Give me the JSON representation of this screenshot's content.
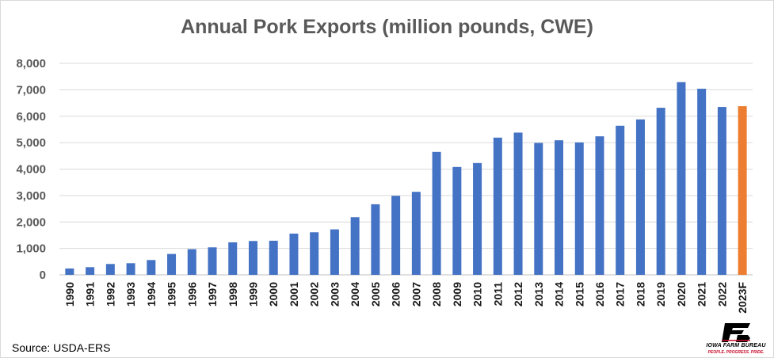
{
  "chart_data": {
    "type": "bar",
    "title": "Annual Pork Exports (million pounds, CWE)",
    "xlabel": "",
    "ylabel": "",
    "ylim": [
      0,
      8000
    ],
    "yticks": [
      "0",
      "1,000",
      "2,000",
      "3,000",
      "4,000",
      "5,000",
      "6,000",
      "7,000",
      "8,000"
    ],
    "categories": [
      "1990",
      "1991",
      "1992",
      "1993",
      "1994",
      "1995",
      "1996",
      "1997",
      "1998",
      "1999",
      "2000",
      "2001",
      "2002",
      "2003",
      "2004",
      "2005",
      "2006",
      "2007",
      "2008",
      "2009",
      "2010",
      "2011",
      "2012",
      "2013",
      "2014",
      "2015",
      "2016",
      "2017",
      "2018",
      "2019",
      "2020",
      "2021",
      "2022",
      "2023F"
    ],
    "values": [
      240,
      290,
      410,
      440,
      560,
      790,
      970,
      1040,
      1230,
      1280,
      1290,
      1560,
      1610,
      1720,
      2180,
      2670,
      2990,
      3140,
      4650,
      4080,
      4230,
      5190,
      5380,
      4990,
      5090,
      5010,
      5240,
      5640,
      5880,
      6320,
      7290,
      7040,
      6350,
      6380
    ],
    "grid": true,
    "legend": "none",
    "bar_color": "#4472c4",
    "forecast_color": "#ed7d31",
    "forecast_category": "2023F"
  },
  "source": "Source: USDA-ERS",
  "logo": {
    "name": "IOWA FARM BUREAU",
    "tagline": "PEOPLE. PROGRESS. PRIDE.",
    "mark_color": "#000000",
    "accent_color": "#c8102e"
  }
}
